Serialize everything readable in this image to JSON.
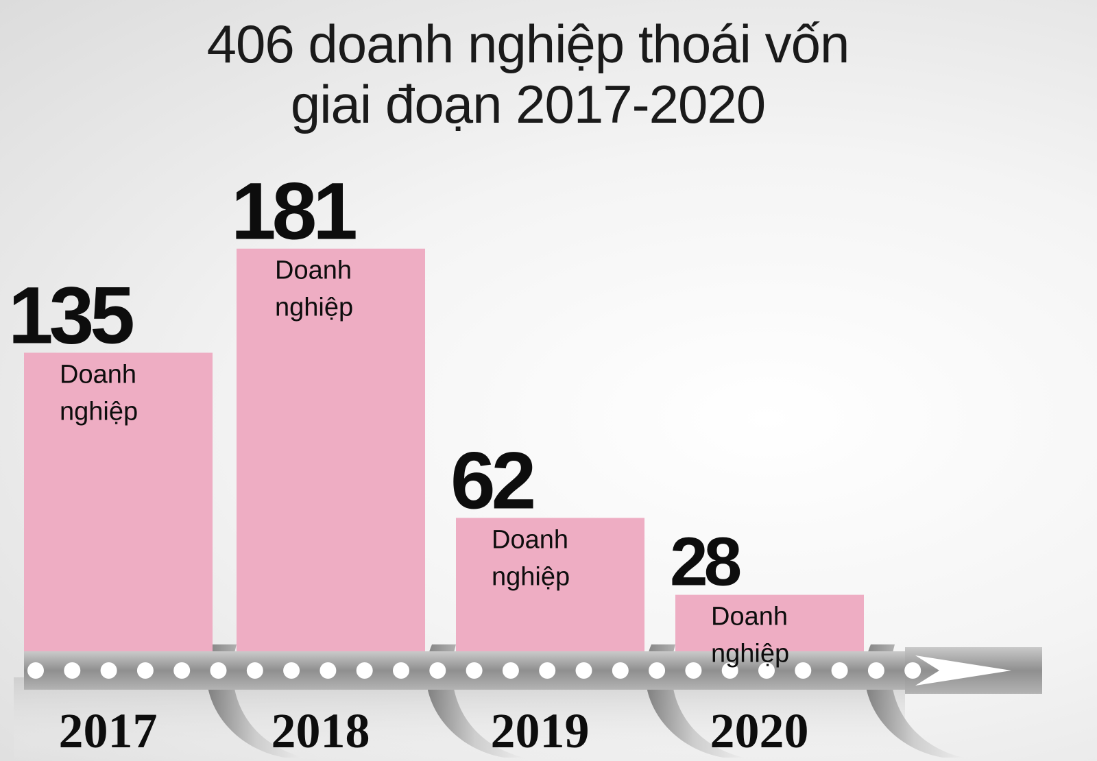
{
  "title": [
    "406 doanh nghiệp thoái vốn",
    "giai đoạn 2017-2020"
  ],
  "colors": {
    "bar": "#eeadc3",
    "bar_shadow": "#d89fb2",
    "timeline": "#9c9c9c",
    "dot": "#ffffff",
    "text": "#0d0d0d"
  },
  "chart_data": {
    "type": "bar",
    "title": "406 doanh nghiệp thoái vốn giai đoạn 2017-2020",
    "categories": [
      "2017",
      "2018",
      "2019",
      "2020"
    ],
    "values": [
      135,
      181,
      62,
      28
    ],
    "unit_label": [
      "Doanh",
      "nghiệp"
    ],
    "xlabel": "",
    "ylabel": ""
  }
}
